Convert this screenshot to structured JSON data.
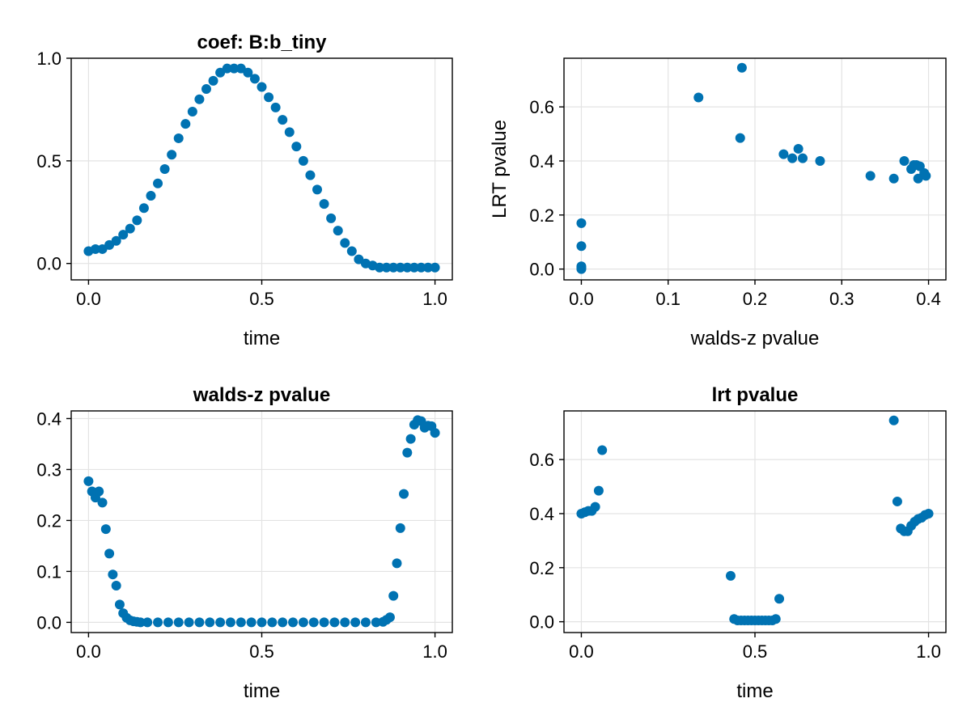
{
  "chart_data": [
    {
      "type": "scatter",
      "title": "coef: B:b_tiny",
      "xlabel": "time",
      "ylabel": "",
      "xlim": [
        -0.05,
        1.05
      ],
      "ylim": [
        -0.08,
        1.0
      ],
      "xticks": [
        0.0,
        0.5,
        1.0
      ],
      "xtick_labels": [
        "0.0",
        "0.5",
        "1.0"
      ],
      "yticks": [
        0.0,
        0.5,
        1.0
      ],
      "ytick_labels": [
        "0.0",
        "0.5",
        "1.0"
      ],
      "grid": true,
      "color": "#0072B2",
      "series": [
        {
          "x": [
            0.0,
            0.02,
            0.04,
            0.06,
            0.08,
            0.1,
            0.12,
            0.14,
            0.16,
            0.18,
            0.2,
            0.22,
            0.24,
            0.26,
            0.28,
            0.3,
            0.32,
            0.34,
            0.36,
            0.38,
            0.4,
            0.42,
            0.44,
            0.46,
            0.48,
            0.5,
            0.52,
            0.54,
            0.56,
            0.58,
            0.6,
            0.62,
            0.64,
            0.66,
            0.68,
            0.7,
            0.72,
            0.74,
            0.76,
            0.78,
            0.8,
            0.82,
            0.84,
            0.86,
            0.88,
            0.9,
            0.92,
            0.94,
            0.96,
            0.98,
            1.0
          ],
          "y": [
            0.06,
            0.07,
            0.07,
            0.09,
            0.11,
            0.14,
            0.17,
            0.21,
            0.27,
            0.33,
            0.39,
            0.46,
            0.53,
            0.61,
            0.68,
            0.74,
            0.8,
            0.85,
            0.89,
            0.93,
            0.95,
            0.95,
            0.95,
            0.93,
            0.9,
            0.86,
            0.81,
            0.76,
            0.7,
            0.64,
            0.57,
            0.5,
            0.43,
            0.36,
            0.29,
            0.22,
            0.16,
            0.1,
            0.06,
            0.02,
            0.0,
            -0.01,
            -0.02,
            -0.02,
            -0.02,
            -0.02,
            -0.02,
            -0.02,
            -0.02,
            -0.02,
            -0.02
          ]
        }
      ]
    },
    {
      "type": "scatter",
      "title": "",
      "xlabel": "walds-z pvalue",
      "ylabel": "LRT pvalue",
      "xlim": [
        -0.02,
        0.42
      ],
      "ylim": [
        -0.04,
        0.78
      ],
      "xticks": [
        0.0,
        0.1,
        0.2,
        0.3,
        0.4
      ],
      "xtick_labels": [
        "0.0",
        "0.1",
        "0.2",
        "0.3",
        "0.4"
      ],
      "yticks": [
        0.0,
        0.2,
        0.4,
        0.6
      ],
      "ytick_labels": [
        "0.0",
        "0.2",
        "0.4",
        "0.6"
      ],
      "grid": true,
      "color": "#0072B2",
      "series": [
        {
          "x": [
            0.0,
            0.0,
            0.0,
            0.0,
            0.0,
            0.135,
            0.183,
            0.185,
            0.233,
            0.243,
            0.25,
            0.255,
            0.275,
            0.333,
            0.36,
            0.372,
            0.38,
            0.383,
            0.386,
            0.388,
            0.39,
            0.395,
            0.397
          ],
          "y": [
            0.17,
            0.085,
            0.01,
            0.005,
            0.0,
            0.635,
            0.485,
            0.745,
            0.425,
            0.41,
            0.445,
            0.41,
            0.4,
            0.345,
            0.335,
            0.4,
            0.37,
            0.385,
            0.385,
            0.335,
            0.38,
            0.355,
            0.345
          ]
        }
      ]
    },
    {
      "type": "scatter",
      "title": "walds-z pvalue",
      "xlabel": "time",
      "ylabel": "",
      "xlim": [
        -0.05,
        1.05
      ],
      "ylim": [
        -0.02,
        0.415
      ],
      "xticks": [
        0.0,
        0.5,
        1.0
      ],
      "xtick_labels": [
        "0.0",
        "0.5",
        "1.0"
      ],
      "yticks": [
        0.0,
        0.1,
        0.2,
        0.3,
        0.4
      ],
      "ytick_labels": [
        "0.0",
        "0.1",
        "0.2",
        "0.3",
        "0.4"
      ],
      "grid": true,
      "color": "#0072B2",
      "series": [
        {
          "x": [
            0.0,
            0.01,
            0.02,
            0.03,
            0.04,
            0.05,
            0.06,
            0.07,
            0.08,
            0.09,
            0.1,
            0.11,
            0.12,
            0.13,
            0.14,
            0.15,
            0.17,
            0.2,
            0.23,
            0.26,
            0.29,
            0.32,
            0.35,
            0.38,
            0.41,
            0.44,
            0.47,
            0.5,
            0.53,
            0.56,
            0.59,
            0.62,
            0.65,
            0.68,
            0.71,
            0.74,
            0.77,
            0.8,
            0.83,
            0.85,
            0.86,
            0.87,
            0.88,
            0.89,
            0.9,
            0.91,
            0.92,
            0.93,
            0.94,
            0.95,
            0.96,
            0.97,
            0.98,
            0.99,
            1.0
          ],
          "y": [
            0.277,
            0.257,
            0.245,
            0.257,
            0.235,
            0.183,
            0.135,
            0.094,
            0.072,
            0.035,
            0.018,
            0.009,
            0.004,
            0.002,
            0.001,
            0.0,
            0.0,
            0.0,
            0.0,
            0.0,
            0.0,
            0.0,
            0.0,
            0.0,
            0.0,
            0.0,
            0.0,
            0.0,
            0.0,
            0.0,
            0.0,
            0.0,
            0.0,
            0.0,
            0.0,
            0.0,
            0.0,
            0.0,
            0.0,
            0.001,
            0.005,
            0.01,
            0.052,
            0.116,
            0.185,
            0.252,
            0.333,
            0.36,
            0.388,
            0.397,
            0.395,
            0.382,
            0.386,
            0.385,
            0.372
          ]
        }
      ]
    },
    {
      "type": "scatter",
      "title": "lrt pvalue",
      "xlabel": "time",
      "ylabel": "",
      "xlim": [
        -0.05,
        1.05
      ],
      "ylim": [
        -0.04,
        0.78
      ],
      "xticks": [
        0.0,
        0.5,
        1.0
      ],
      "xtick_labels": [
        "0.0",
        "0.5",
        "1.0"
      ],
      "yticks": [
        0.0,
        0.2,
        0.4,
        0.6
      ],
      "ytick_labels": [
        "0.0",
        "0.2",
        "0.4",
        "0.6"
      ],
      "grid": true,
      "color": "#0072B2",
      "series": [
        {
          "x": [
            0.0,
            0.01,
            0.02,
            0.03,
            0.04,
            0.05,
            0.06,
            0.43,
            0.44,
            0.45,
            0.46,
            0.47,
            0.48,
            0.49,
            0.5,
            0.51,
            0.52,
            0.53,
            0.54,
            0.55,
            0.56,
            0.57,
            0.9,
            0.91,
            0.92,
            0.93,
            0.94,
            0.95,
            0.96,
            0.97,
            0.98,
            0.99,
            1.0
          ],
          "y": [
            0.4,
            0.405,
            0.41,
            0.41,
            0.425,
            0.485,
            0.635,
            0.17,
            0.01,
            0.005,
            0.005,
            0.005,
            0.005,
            0.005,
            0.005,
            0.005,
            0.005,
            0.005,
            0.005,
            0.005,
            0.01,
            0.085,
            0.745,
            0.445,
            0.345,
            0.335,
            0.335,
            0.355,
            0.37,
            0.38,
            0.385,
            0.395,
            0.4
          ]
        }
      ]
    }
  ]
}
